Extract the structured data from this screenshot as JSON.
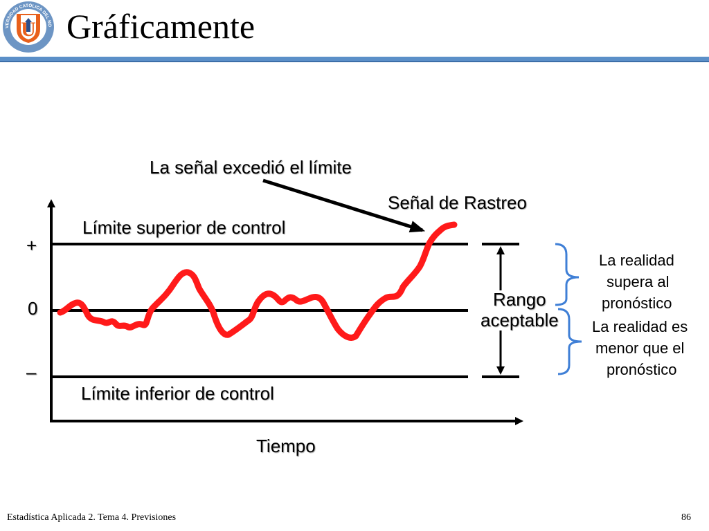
{
  "header": {
    "title": "Gráficamente"
  },
  "logo": {
    "ring_text": "UNIVERSIDAD CATÓLICA DEL NORTE",
    "bottom_text": "CHILE",
    "letter": "U",
    "colors": {
      "ring": "#6d95c4",
      "inner": "#ffffff",
      "shield": "#e8601c",
      "accent": "#2b4f8c"
    }
  },
  "diagram": {
    "annotation": "La señal excedió el límite",
    "signal_label": "Señal de Rastreo",
    "upper_limit_label": "Límite superior de control",
    "lower_limit_label": "Límite inferior de control",
    "axis_plus": "+",
    "axis_zero": "0",
    "axis_minus": "–",
    "x_axis_label": "Tiempo",
    "range_label_1": "Rango",
    "range_label_2": "aceptable",
    "above_text": [
      "La realidad",
      "supera al",
      "pronóstico"
    ],
    "below_text": [
      "La realidad es",
      "menor que el",
      "pronóstico"
    ],
    "colors": {
      "signal": "#ff1a1a",
      "bracket": "#3f7fd6",
      "lines": "#000000"
    }
  },
  "footer": {
    "course": "Estadística Aplicada 2. Tema 4. Previsiones",
    "page_number": "86"
  }
}
